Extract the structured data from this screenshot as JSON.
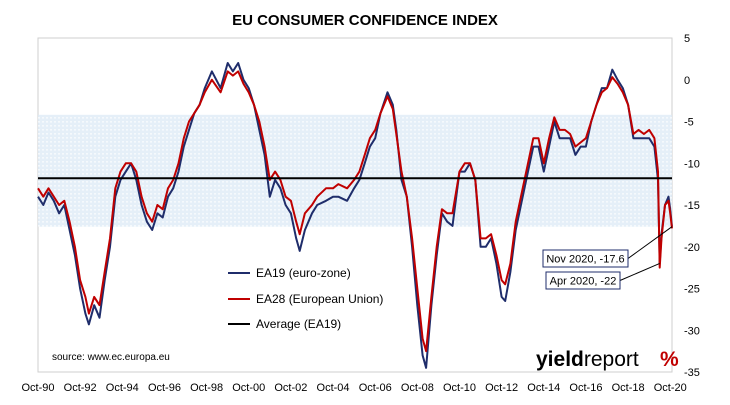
{
  "chart_data": {
    "type": "line",
    "title": "EU CONSUMER CONFIDENCE INDEX",
    "xlabel": "",
    "ylabel": "",
    "x_tick_labels": [
      "Oct-90",
      "Oct-92",
      "Oct-94",
      "Oct-96",
      "Oct-98",
      "Oct-00",
      "Oct-02",
      "Oct-04",
      "Oct-06",
      "Oct-08",
      "Oct-10",
      "Oct-12",
      "Oct-14",
      "Oct-16",
      "Oct-18",
      "Oct-20"
    ],
    "y_ticks": [
      5,
      0,
      -5,
      -10,
      -15,
      -20,
      -25,
      -30,
      -35
    ],
    "ylim": [
      -35,
      5
    ],
    "xlim": [
      "1990-10",
      "2020-11"
    ],
    "y_axis_side": "right",
    "grid": false,
    "shaded_band": {
      "from": -17.6,
      "to": -4.2
    },
    "series": [
      {
        "name": "EA19 (euro-zone)",
        "color": "#1f2d6b",
        "points": [
          [
            "1990-10",
            -14
          ],
          [
            "1991-01",
            -15
          ],
          [
            "1991-04",
            -13.5
          ],
          [
            "1991-07",
            -14.5
          ],
          [
            "1991-10",
            -16
          ],
          [
            "1992-01",
            -15
          ],
          [
            "1992-04",
            -18
          ],
          [
            "1992-07",
            -21
          ],
          [
            "1992-10",
            -25
          ],
          [
            "1993-01",
            -28
          ],
          [
            "1993-03",
            -29.3
          ],
          [
            "1993-06",
            -27
          ],
          [
            "1993-09",
            -28.5
          ],
          [
            "1993-12",
            -24
          ],
          [
            "1994-03",
            -20
          ],
          [
            "1994-06",
            -14
          ],
          [
            "1994-09",
            -12
          ],
          [
            "1994-12",
            -11
          ],
          [
            "1995-03",
            -10
          ],
          [
            "1995-06",
            -12
          ],
          [
            "1995-09",
            -15
          ],
          [
            "1995-12",
            -17
          ],
          [
            "1996-03",
            -18
          ],
          [
            "1996-06",
            -16
          ],
          [
            "1996-09",
            -16.5
          ],
          [
            "1996-12",
            -14
          ],
          [
            "1997-03",
            -13
          ],
          [
            "1997-06",
            -11
          ],
          [
            "1997-09",
            -8
          ],
          [
            "1997-12",
            -6
          ],
          [
            "1998-03",
            -4
          ],
          [
            "1998-06",
            -3
          ],
          [
            "1998-09",
            -1
          ],
          [
            "1999-01",
            1
          ],
          [
            "1999-06",
            -1
          ],
          [
            "1999-10",
            2
          ],
          [
            "2000-01",
            1
          ],
          [
            "2000-04",
            2
          ],
          [
            "2000-07",
            0
          ],
          [
            "2000-10",
            -1
          ],
          [
            "2001-01",
            -3
          ],
          [
            "2001-04",
            -6
          ],
          [
            "2001-07",
            -9
          ],
          [
            "2001-10",
            -14
          ],
          [
            "2002-01",
            -12
          ],
          [
            "2002-04",
            -13
          ],
          [
            "2002-07",
            -15
          ],
          [
            "2002-10",
            -16
          ],
          [
            "2003-01",
            -19
          ],
          [
            "2003-03",
            -20.5
          ],
          [
            "2003-06",
            -18
          ],
          [
            "2003-10",
            -16
          ],
          [
            "2004-01",
            -15
          ],
          [
            "2004-06",
            -14.5
          ],
          [
            "2004-10",
            -14
          ],
          [
            "2005-01",
            -14
          ],
          [
            "2005-06",
            -14.5
          ],
          [
            "2005-10",
            -13
          ],
          [
            "2006-01",
            -12
          ],
          [
            "2006-04",
            -10
          ],
          [
            "2006-07",
            -8
          ],
          [
            "2006-10",
            -7
          ],
          [
            "2007-01",
            -4
          ],
          [
            "2007-05",
            -1.5
          ],
          [
            "2007-08",
            -3
          ],
          [
            "2007-10",
            -6
          ],
          [
            "2008-01",
            -12
          ],
          [
            "2008-04",
            -14
          ],
          [
            "2008-07",
            -20
          ],
          [
            "2008-10",
            -27
          ],
          [
            "2009-01",
            -33
          ],
          [
            "2009-03",
            -34.5
          ],
          [
            "2009-06",
            -27
          ],
          [
            "2009-09",
            -21
          ],
          [
            "2009-12",
            -16
          ],
          [
            "2010-03",
            -17
          ],
          [
            "2010-06",
            -17.5
          ],
          [
            "2010-10",
            -11
          ],
          [
            "2011-01",
            -11
          ],
          [
            "2011-04",
            -10
          ],
          [
            "2011-07",
            -12
          ],
          [
            "2011-10",
            -20
          ],
          [
            "2012-01",
            -20
          ],
          [
            "2012-04",
            -19
          ],
          [
            "2012-07",
            -22
          ],
          [
            "2012-10",
            -26
          ],
          [
            "2012-12",
            -26.5
          ],
          [
            "2013-03",
            -23
          ],
          [
            "2013-06",
            -18
          ],
          [
            "2013-10",
            -14
          ],
          [
            "2014-01",
            -11
          ],
          [
            "2014-04",
            -8
          ],
          [
            "2014-07",
            -8
          ],
          [
            "2014-10",
            -11
          ],
          [
            "2015-01",
            -8
          ],
          [
            "2015-04",
            -5
          ],
          [
            "2015-07",
            -7
          ],
          [
            "2015-10",
            -7
          ],
          [
            "2016-01",
            -7
          ],
          [
            "2016-04",
            -9
          ],
          [
            "2016-07",
            -8
          ],
          [
            "2016-10",
            -8
          ],
          [
            "2017-01",
            -5
          ],
          [
            "2017-04",
            -3
          ],
          [
            "2017-07",
            -1
          ],
          [
            "2017-10",
            -1
          ],
          [
            "2018-01",
            1.2
          ],
          [
            "2018-04",
            0
          ],
          [
            "2018-07",
            -1
          ],
          [
            "2018-10",
            -3
          ],
          [
            "2019-01",
            -7
          ],
          [
            "2019-04",
            -7
          ],
          [
            "2019-07",
            -7
          ],
          [
            "2019-10",
            -7
          ],
          [
            "2020-01",
            -8
          ],
          [
            "2020-03",
            -12
          ],
          [
            "2020-04",
            -22
          ],
          [
            "2020-05",
            -18.5
          ],
          [
            "2020-07",
            -15
          ],
          [
            "2020-09",
            -14
          ],
          [
            "2020-10",
            -15.5
          ],
          [
            "2020-11",
            -17.6
          ]
        ]
      },
      {
        "name": "EA28 (European Union)",
        "color": "#c00000",
        "points": [
          [
            "1990-10",
            -13
          ],
          [
            "1991-01",
            -14
          ],
          [
            "1991-04",
            -13
          ],
          [
            "1991-07",
            -14
          ],
          [
            "1991-10",
            -15
          ],
          [
            "1992-01",
            -14.5
          ],
          [
            "1992-04",
            -17
          ],
          [
            "1992-07",
            -20
          ],
          [
            "1992-10",
            -24
          ],
          [
            "1993-01",
            -26
          ],
          [
            "1993-03",
            -28
          ],
          [
            "1993-06",
            -26
          ],
          [
            "1993-09",
            -27
          ],
          [
            "1993-12",
            -23
          ],
          [
            "1994-03",
            -19
          ],
          [
            "1994-06",
            -13
          ],
          [
            "1994-09",
            -11
          ],
          [
            "1994-12",
            -10
          ],
          [
            "1995-03",
            -10
          ],
          [
            "1995-06",
            -11
          ],
          [
            "1995-09",
            -14
          ],
          [
            "1995-12",
            -16
          ],
          [
            "1996-03",
            -17
          ],
          [
            "1996-06",
            -15
          ],
          [
            "1996-09",
            -15.5
          ],
          [
            "1996-12",
            -13
          ],
          [
            "1997-03",
            -12
          ],
          [
            "1997-06",
            -10
          ],
          [
            "1997-09",
            -7
          ],
          [
            "1997-12",
            -5
          ],
          [
            "1998-03",
            -4
          ],
          [
            "1998-06",
            -3
          ],
          [
            "1998-09",
            -1.5
          ],
          [
            "1999-01",
            0
          ],
          [
            "1999-06",
            -1.5
          ],
          [
            "1999-10",
            1
          ],
          [
            "2000-01",
            0.5
          ],
          [
            "2000-04",
            1
          ],
          [
            "2000-07",
            -0.5
          ],
          [
            "2000-10",
            -1.5
          ],
          [
            "2001-01",
            -3
          ],
          [
            "2001-04",
            -5
          ],
          [
            "2001-07",
            -8
          ],
          [
            "2001-10",
            -12
          ],
          [
            "2002-01",
            -11
          ],
          [
            "2002-04",
            -12
          ],
          [
            "2002-07",
            -14
          ],
          [
            "2002-10",
            -14.5
          ],
          [
            "2003-01",
            -17
          ],
          [
            "2003-03",
            -18.5
          ],
          [
            "2003-06",
            -16
          ],
          [
            "2003-10",
            -15
          ],
          [
            "2004-01",
            -14
          ],
          [
            "2004-06",
            -13
          ],
          [
            "2004-10",
            -13
          ],
          [
            "2005-01",
            -12.5
          ],
          [
            "2005-06",
            -13
          ],
          [
            "2005-10",
            -12
          ],
          [
            "2006-01",
            -11
          ],
          [
            "2006-04",
            -9
          ],
          [
            "2006-07",
            -7
          ],
          [
            "2006-10",
            -6
          ],
          [
            "2007-01",
            -4
          ],
          [
            "2007-05",
            -2
          ],
          [
            "2007-08",
            -3.5
          ],
          [
            "2007-10",
            -6.5
          ],
          [
            "2008-01",
            -11
          ],
          [
            "2008-04",
            -14
          ],
          [
            "2008-07",
            -19
          ],
          [
            "2008-10",
            -25
          ],
          [
            "2009-01",
            -31
          ],
          [
            "2009-03",
            -32.5
          ],
          [
            "2009-06",
            -26
          ],
          [
            "2009-09",
            -20
          ],
          [
            "2009-12",
            -15.5
          ],
          [
            "2010-03",
            -16
          ],
          [
            "2010-06",
            -16
          ],
          [
            "2010-10",
            -11
          ],
          [
            "2011-01",
            -10
          ],
          [
            "2011-04",
            -10
          ],
          [
            "2011-07",
            -12
          ],
          [
            "2011-10",
            -19
          ],
          [
            "2012-01",
            -19
          ],
          [
            "2012-04",
            -18.5
          ],
          [
            "2012-07",
            -21
          ],
          [
            "2012-10",
            -24
          ],
          [
            "2012-12",
            -24.5
          ],
          [
            "2013-03",
            -22
          ],
          [
            "2013-06",
            -17
          ],
          [
            "2013-10",
            -13
          ],
          [
            "2014-01",
            -10
          ],
          [
            "2014-04",
            -7
          ],
          [
            "2014-07",
            -7
          ],
          [
            "2014-10",
            -10
          ],
          [
            "2015-01",
            -7
          ],
          [
            "2015-04",
            -4.5
          ],
          [
            "2015-07",
            -6
          ],
          [
            "2015-10",
            -6
          ],
          [
            "2016-01",
            -6.5
          ],
          [
            "2016-04",
            -8
          ],
          [
            "2016-07",
            -7.5
          ],
          [
            "2016-10",
            -7
          ],
          [
            "2017-01",
            -5
          ],
          [
            "2017-04",
            -3
          ],
          [
            "2017-07",
            -1.5
          ],
          [
            "2017-10",
            -1
          ],
          [
            "2018-01",
            0.3
          ],
          [
            "2018-04",
            -0.5
          ],
          [
            "2018-07",
            -1.5
          ],
          [
            "2018-10",
            -3
          ],
          [
            "2019-01",
            -6.5
          ],
          [
            "2019-04",
            -6
          ],
          [
            "2019-07",
            -6.5
          ],
          [
            "2019-10",
            -6
          ],
          [
            "2020-01",
            -7
          ],
          [
            "2020-03",
            -11
          ],
          [
            "2020-04",
            -22.5
          ],
          [
            "2020-05",
            -19
          ],
          [
            "2020-07",
            -15
          ],
          [
            "2020-09",
            -14.5
          ],
          [
            "2020-10",
            -16
          ],
          [
            "2020-11",
            -17.8
          ]
        ]
      },
      {
        "name": "Average (EA19)",
        "color": "#000000",
        "constant": -11.8
      }
    ],
    "annotations": [
      {
        "text": "Nov 2020, -17.6",
        "x": "2020-11",
        "y": -17.6
      },
      {
        "text": "Apr 2020, -22",
        "x": "2020-04",
        "y": -22
      }
    ],
    "legend_position": "bottom-left",
    "source_note": "source: www.ec.europa.eu",
    "logo": {
      "text_bold": "yield",
      "text_regular": "report",
      "symbol": "%"
    }
  }
}
